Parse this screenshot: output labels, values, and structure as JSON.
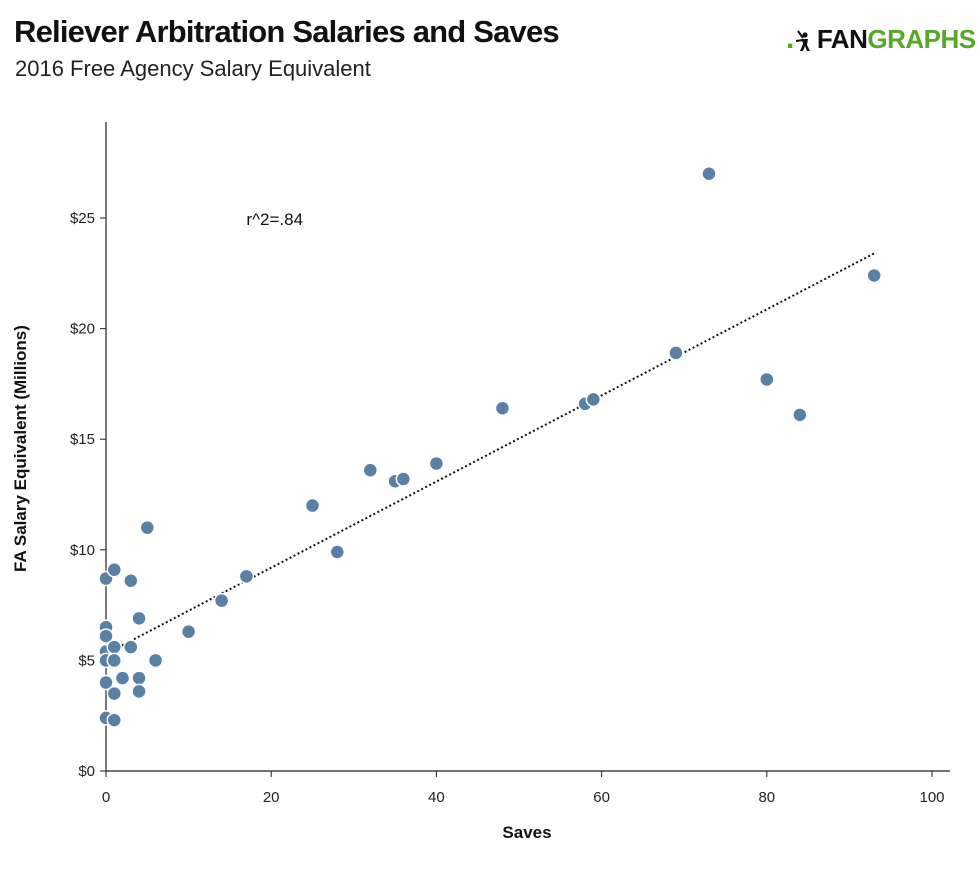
{
  "colors": {
    "point": "#5b80a6",
    "point_stroke": "#ffffff",
    "logo_green": "#55a82a",
    "axis": "#222222"
  },
  "logo": {
    "dots": ".",
    "fan": "FAN",
    "graphs": "GRAPHS",
    "icon": "fangraphs-batter-icon"
  },
  "chart_data": {
    "type": "scatter",
    "title": "Reliever Arbitration Salaries and Saves",
    "subtitle": "2016 Free Agency Salary Equivalent",
    "xlabel": "Saves",
    "ylabel": "FA Salary Equivalent (Millions)",
    "xlim": [
      0,
      100
    ],
    "ylim": [
      0,
      29
    ],
    "xticks": [
      0,
      20,
      40,
      60,
      80,
      100
    ],
    "xtick_labels": [
      "0",
      "20",
      "40",
      "60",
      "80",
      "100"
    ],
    "yticks": [
      0,
      5,
      10,
      15,
      20,
      25
    ],
    "ytick_labels": [
      "$0",
      "$5",
      "$10",
      "$15",
      "$20",
      "$25"
    ],
    "grid": false,
    "annotation": {
      "text": "r^2=.84",
      "x": 17,
      "y": 25
    },
    "trendline": {
      "style": "dotted",
      "x": [
        0,
        93
      ],
      "y": [
        5.3,
        23.4
      ]
    },
    "points": [
      {
        "x": 0,
        "y": 8.7
      },
      {
        "x": 0,
        "y": 6.5
      },
      {
        "x": 0,
        "y": 6.1
      },
      {
        "x": 0,
        "y": 5.4
      },
      {
        "x": 0,
        "y": 5.0
      },
      {
        "x": 0,
        "y": 4.0
      },
      {
        "x": 0,
        "y": 2.4
      },
      {
        "x": 1,
        "y": 9.1
      },
      {
        "x": 1,
        "y": 5.6
      },
      {
        "x": 1,
        "y": 5.0
      },
      {
        "x": 1,
        "y": 3.5
      },
      {
        "x": 1,
        "y": 2.3
      },
      {
        "x": 2,
        "y": 4.2
      },
      {
        "x": 3,
        "y": 8.6
      },
      {
        "x": 3,
        "y": 5.6
      },
      {
        "x": 4,
        "y": 6.9
      },
      {
        "x": 4,
        "y": 4.2
      },
      {
        "x": 4,
        "y": 3.6
      },
      {
        "x": 5,
        "y": 11.0
      },
      {
        "x": 6,
        "y": 5.0
      },
      {
        "x": 10,
        "y": 6.3
      },
      {
        "x": 14,
        "y": 7.7
      },
      {
        "x": 17,
        "y": 8.8
      },
      {
        "x": 25,
        "y": 12.0
      },
      {
        "x": 28,
        "y": 9.9
      },
      {
        "x": 32,
        "y": 13.6
      },
      {
        "x": 35,
        "y": 13.1
      },
      {
        "x": 36,
        "y": 13.2
      },
      {
        "x": 40,
        "y": 13.9
      },
      {
        "x": 48,
        "y": 16.4
      },
      {
        "x": 58,
        "y": 16.6
      },
      {
        "x": 59,
        "y": 16.8
      },
      {
        "x": 69,
        "y": 18.9
      },
      {
        "x": 73,
        "y": 27.0
      },
      {
        "x": 80,
        "y": 17.7
      },
      {
        "x": 84,
        "y": 16.1
      },
      {
        "x": 93,
        "y": 22.4
      }
    ]
  }
}
